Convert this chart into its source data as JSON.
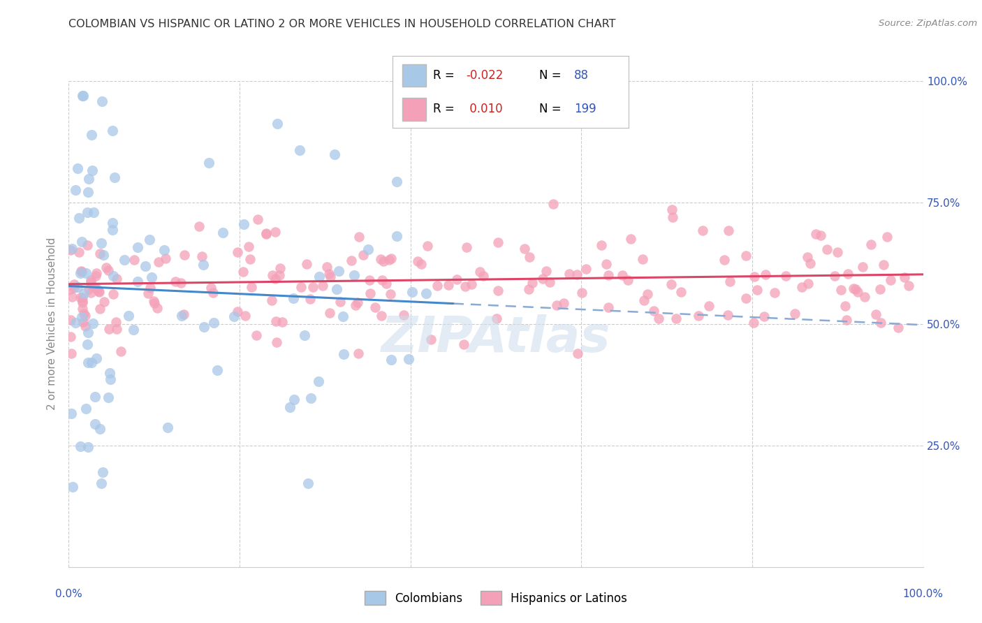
{
  "title": "COLOMBIAN VS HISPANIC OR LATINO 2 OR MORE VEHICLES IN HOUSEHOLD CORRELATION CHART",
  "source": "Source: ZipAtlas.com",
  "ylabel": "2 or more Vehicles in Household",
  "blue_color": "#a8c8e8",
  "pink_color": "#f4a0b8",
  "blue_line_color": "#4488cc",
  "pink_line_color": "#dd4466",
  "blue_dashed_color": "#88aad4",
  "axis_label_color": "#3355bb",
  "grid_color": "#cccccc",
  "title_color": "#333333",
  "source_color": "#888888",
  "ylabel_color": "#888888",
  "watermark_text": "ZIPAtlas",
  "legend_r1": "-0.022",
  "legend_n1": "88",
  "legend_r2": " 0.010",
  "legend_n2": "199",
  "r_color": "#cc2222",
  "n_color": "#3355bb"
}
